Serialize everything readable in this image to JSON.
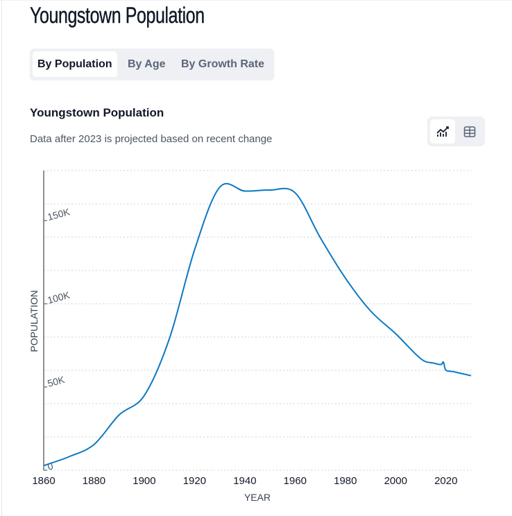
{
  "page_title": "Youngstown Population",
  "tabs": [
    {
      "label": "By Population",
      "active": true
    },
    {
      "label": "By Age",
      "active": false
    },
    {
      "label": "By Growth Rate",
      "active": false
    }
  ],
  "section_title": "Youngstown Population",
  "section_description": "Data after 2023 is projected based on recent change",
  "view_toggle": {
    "chart_icon": "line-chart-icon",
    "table_icon": "table-icon",
    "active": "chart"
  },
  "colors": {
    "line": "#0a78c2",
    "grid": "#d8dbe0",
    "axis": "#6b6b6b"
  },
  "chart_data": {
    "type": "line",
    "title": "Youngstown Population",
    "xlabel": "YEAR",
    "ylabel": "POPULATION",
    "xlim": [
      1860,
      2030
    ],
    "ylim": [
      0,
      180000
    ],
    "x_ticks": [
      1860,
      1880,
      1900,
      1920,
      1940,
      1960,
      1980,
      2000,
      2020
    ],
    "x_tick_labels": [
      "1860",
      "1880",
      "1900",
      "1920",
      "1940",
      "1960",
      "1980",
      "2000",
      "2020"
    ],
    "y_ticks": [
      0,
      50000,
      100000,
      150000
    ],
    "y_tick_labels": [
      "0",
      "50K",
      "100K",
      "150K"
    ],
    "grid_step": 20000,
    "grid": true,
    "series": [
      {
        "name": "Population",
        "x": [
          1860,
          1870,
          1880,
          1890,
          1900,
          1910,
          1920,
          1930,
          1940,
          1950,
          1960,
          1970,
          1980,
          1990,
          2000,
          2010,
          2015,
          2018,
          2019,
          2020,
          2023,
          2030
        ],
        "y": [
          2759,
          8075,
          15435,
          33220,
          44885,
          79066,
          132358,
          170002,
          167720,
          168330,
          166689,
          139788,
          115436,
          95732,
          82026,
          66982,
          64400,
          63500,
          64958,
          60068,
          59200,
          56800
        ]
      }
    ]
  }
}
